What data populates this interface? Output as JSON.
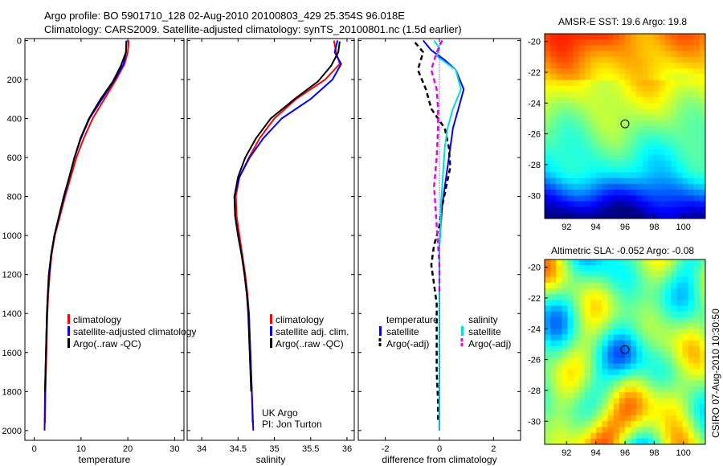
{
  "header": {
    "title_line1": "Argo profile: BO 5901710_128 02-Aug-2010 20100803_429 25.354S 96.018E",
    "title_line2": "Climatology: CARS2009. Satellite-adjusted climatology: synTS_20100801.nc (1.5d earlier)"
  },
  "side_text": "CSIRO 07-Aug-2010 10:30:50",
  "credit": {
    "line1": "UK Argo",
    "line2": "PI: Jon Turton"
  },
  "chart_data": [
    {
      "id": "temperature",
      "type": "line",
      "xlabel": "temperature",
      "ylabel": "",
      "xlim": [
        -2,
        32
      ],
      "ylim": [
        2050,
        -10
      ],
      "xticks": [
        0,
        10,
        20,
        30
      ],
      "yticks": [
        0,
        200,
        400,
        600,
        800,
        1000,
        1200,
        1400,
        1600,
        1800,
        2000
      ],
      "series": [
        {
          "name": "climatology",
          "color": "#ff0000",
          "dash": false,
          "x": [
            20.2,
            20.0,
            19.3,
            17.5,
            15.0,
            12.5,
            10.6,
            9.0,
            7.8,
            6.6,
            5.5,
            4.4,
            3.7,
            3.3,
            3.0,
            2.8,
            2.6,
            2.4,
            2.3
          ],
          "y": [
            0,
            60,
            120,
            200,
            300,
            400,
            500,
            600,
            700,
            800,
            900,
            1000,
            1100,
            1200,
            1300,
            1400,
            1600,
            1800,
            1960
          ]
        },
        {
          "name": "satellite-adjusted climatology",
          "color": "#0000ff",
          "dash": false,
          "x": [
            19.7,
            19.6,
            19.1,
            17.2,
            14.5,
            11.8,
            10.0,
            8.6,
            7.5,
            6.4,
            5.3,
            4.3,
            3.6,
            3.2,
            2.9,
            2.7,
            2.5,
            2.3,
            2.2
          ],
          "y": [
            0,
            60,
            120,
            200,
            300,
            400,
            500,
            600,
            700,
            800,
            900,
            1000,
            1100,
            1200,
            1300,
            1400,
            1600,
            1800,
            2000
          ]
        },
        {
          "name": "Argo(..raw -QC)",
          "color": "#000000",
          "dash": false,
          "x": [
            19.7,
            19.6,
            18.5,
            16.8,
            14.2,
            11.7,
            9.9,
            8.6,
            7.5,
            6.3,
            5.3,
            4.3,
            3.6,
            3.1,
            2.9,
            2.7,
            2.5,
            2.3
          ],
          "y": [
            5,
            60,
            130,
            210,
            300,
            400,
            500,
            600,
            700,
            800,
            900,
            1000,
            1100,
            1200,
            1300,
            1400,
            1600,
            1800
          ]
        }
      ],
      "legend": [
        "climatology",
        "satellite-adjusted climatology",
        "Argo(..raw -QC)"
      ]
    },
    {
      "id": "salinity",
      "type": "line",
      "xlabel": "salinity",
      "ylabel": "",
      "xlim": [
        33.8,
        36.1
      ],
      "ylim": [
        2050,
        -10
      ],
      "xticks": [
        34,
        34.5,
        35,
        35.5,
        36
      ],
      "series": [
        {
          "name": "climatology",
          "color": "#ff0000",
          "dash": false,
          "x": [
            35.82,
            35.85,
            35.9,
            35.7,
            35.3,
            35.0,
            34.8,
            34.65,
            34.52,
            34.47,
            34.48,
            34.52,
            34.56,
            34.6,
            34.63,
            34.65,
            34.67,
            34.69,
            34.7
          ],
          "y": [
            0,
            60,
            120,
            200,
            300,
            400,
            500,
            600,
            700,
            800,
            900,
            1000,
            1100,
            1200,
            1300,
            1400,
            1600,
            1800,
            1960
          ]
        },
        {
          "name": "satellite adj. clim.",
          "color": "#0000ff",
          "dash": false,
          "x": [
            35.87,
            35.83,
            35.92,
            35.8,
            35.5,
            35.1,
            34.85,
            34.66,
            34.52,
            34.45,
            34.46,
            34.5,
            34.55,
            34.59,
            34.62,
            34.65,
            34.67,
            34.69,
            34.71
          ],
          "y": [
            0,
            60,
            120,
            200,
            300,
            400,
            500,
            600,
            700,
            800,
            900,
            1000,
            1100,
            1200,
            1300,
            1400,
            1600,
            1800,
            2000
          ]
        },
        {
          "name": "Argo(..raw -QC)",
          "color": "#000000",
          "dash": false,
          "x": [
            35.9,
            35.88,
            35.78,
            35.6,
            35.28,
            34.95,
            34.75,
            34.6,
            34.5,
            34.45,
            34.46,
            34.5,
            34.55,
            34.59,
            34.62,
            34.64,
            34.66,
            34.68
          ],
          "y": [
            5,
            60,
            130,
            210,
            300,
            400,
            500,
            600,
            700,
            800,
            900,
            1000,
            1100,
            1200,
            1300,
            1400,
            1600,
            1800
          ]
        }
      ],
      "legend": [
        "climatology",
        "satellite adj. clim.",
        "Argo(..raw -QC)"
      ]
    },
    {
      "id": "difference",
      "type": "line",
      "xlabel": "difference from climatology",
      "ylabel": "",
      "xlim": [
        -3,
        3
      ],
      "ylim": [
        2050,
        -10
      ],
      "xticks": [
        -2,
        0,
        2
      ],
      "series": [
        {
          "name": "temperature satellite",
          "color": "#0000ff",
          "dash": false,
          "x": [
            -0.6,
            -0.3,
            0.2,
            0.6,
            0.9,
            0.7,
            0.5,
            0.4,
            0.3,
            0.2,
            0.1,
            0.05,
            0.0,
            0.0,
            0.0,
            0.0,
            0.0,
            0.0,
            0.0
          ],
          "y": [
            0,
            50,
            100,
            150,
            250,
            350,
            450,
            550,
            650,
            750,
            850,
            950,
            1050,
            1150,
            1250,
            1400,
            1600,
            1800,
            2000
          ]
        },
        {
          "name": "temperature Argo(-adj)",
          "color": "#000000",
          "dash": true,
          "x": [
            -0.9,
            -0.6,
            -0.8,
            -0.5,
            -0.3,
            0.2,
            0.35,
            0.4,
            0.25,
            0.1,
            0.0,
            -0.2,
            -0.3,
            -0.2,
            -0.1,
            -0.1,
            -0.1,
            -0.05,
            -0.05
          ],
          "y": [
            10,
            60,
            150,
            250,
            350,
            450,
            550,
            650,
            750,
            850,
            950,
            1050,
            1150,
            1250,
            1350,
            1500,
            1700,
            1850,
            1960
          ]
        },
        {
          "name": "salinity satellite",
          "color": "#00dddd",
          "dash": false,
          "x": [
            -0.2,
            0.0,
            -0.1,
            0.6,
            0.8,
            0.5,
            0.3,
            0.2,
            0.15,
            0.1,
            0.05,
            0.05,
            0.0,
            0.0,
            0.0,
            0.0,
            0.0,
            0.0,
            0.0
          ],
          "y": [
            0,
            40,
            80,
            150,
            250,
            350,
            450,
            550,
            650,
            750,
            850,
            950,
            1050,
            1150,
            1250,
            1400,
            1600,
            1800,
            2000
          ]
        },
        {
          "name": "salinity Argo(-adj)",
          "color": "#ee00ee",
          "dash": true,
          "x": [
            0.1,
            -0.1,
            -0.3,
            -0.1,
            -0.05,
            -0.05,
            -0.1,
            -0.2,
            -0.15,
            -0.1,
            -0.05,
            0.0,
            0.0,
            0.0
          ],
          "y": [
            0,
            60,
            150,
            250,
            350,
            450,
            600,
            750,
            850,
            950,
            1050,
            1150,
            1250,
            1300
          ]
        }
      ],
      "legend_left_title": "temperature",
      "legend_right_title": "salinity",
      "legend_left": [
        "satellite",
        "Argo(-adj)"
      ],
      "legend_right": [
        "satellite",
        "Argo(-adj)"
      ]
    },
    {
      "id": "sst_map",
      "type": "heatmap",
      "title": "AMSR-E SST: 19.6 Argo: 19.8",
      "xlim": [
        90.5,
        101.5
      ],
      "ylim": [
        -31.5,
        -19.5
      ],
      "xticks": [
        92,
        94,
        96,
        98,
        100
      ],
      "yticks": [
        -20,
        -22,
        -24,
        -26,
        -28,
        -30
      ],
      "marker": [
        96.0,
        -25.35
      ]
    },
    {
      "id": "sla_map",
      "type": "heatmap",
      "title": "Altimetric SLA: -0.052 Argo: -0.08",
      "xlim": [
        90.5,
        101.5
      ],
      "ylim": [
        -31.5,
        -19.5
      ],
      "xticks": [
        92,
        94,
        96,
        98,
        100
      ],
      "yticks": [
        -20,
        -22,
        -24,
        -26,
        -28,
        -30
      ],
      "marker": [
        96.0,
        -25.35
      ]
    }
  ]
}
